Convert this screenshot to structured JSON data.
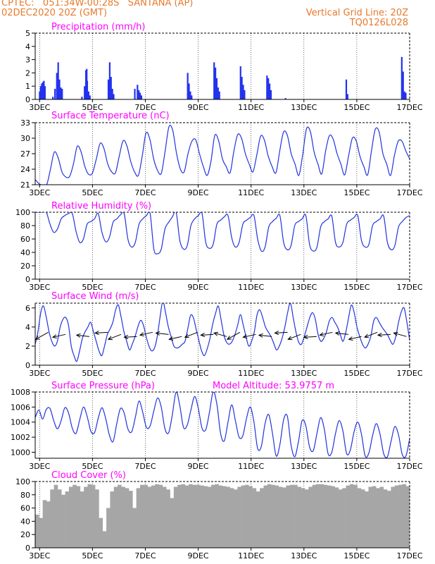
{
  "header": {
    "line1_left": "CPTEC:   051:34W-00:28S   SANTANA (AP)",
    "line2_left": "02DEC2020 20Z (GMT)",
    "line2_right": "Vertical Grid Line: 20Z",
    "line3_right": "TQ0126L028"
  },
  "colors": {
    "header": "#e8792b",
    "title": "#ff00ff",
    "line": "#2233dd",
    "bar": "#2233ee",
    "cloud": "#a6a6a6"
  },
  "x_axis": {
    "tick_labels": [
      "3DEC",
      "5DEC",
      "7DEC",
      "9DEC",
      "11DEC",
      "13DEC",
      "15DEC",
      "17DEC"
    ],
    "tick_days": [
      3,
      5,
      7,
      9,
      11,
      13,
      15,
      17
    ],
    "start_day": 2.833,
    "end_day": 17.0
  },
  "chart_data": [
    {
      "type": "bar",
      "title": "Precipitation (mm/h)",
      "ylim": [
        0,
        5
      ],
      "yticks": [
        0,
        1,
        2,
        3,
        4,
        5
      ],
      "series": [
        {
          "x": [
            3.0,
            3.04,
            3.08,
            3.12,
            3.16,
            3.2,
            3.5,
            3.58,
            3.65,
            3.7,
            3.75,
            3.8,
            3.85,
            4.6,
            4.7,
            4.75,
            4.78,
            4.8,
            4.85,
            4.9,
            5.6,
            5.65,
            5.7,
            5.75,
            5.8,
            6.6,
            6.7,
            6.75,
            6.8,
            6.85,
            8.6,
            8.65,
            8.7,
            8.75,
            9.6,
            9.65,
            9.7,
            9.75,
            9.8,
            10.6,
            10.65,
            10.7,
            10.75,
            11.6,
            11.65,
            11.7,
            11.75,
            12.3,
            14.6,
            14.65,
            16.7,
            16.75,
            16.8,
            16.85
          ],
          "values": [
            0.6,
            1.0,
            1.2,
            1.3,
            1.4,
            1.0,
            0.2,
            0.8,
            2.0,
            2.8,
            1.5,
            0.9,
            0.8,
            0.2,
            1.0,
            2.2,
            2.3,
            1.4,
            0.6,
            0.3,
            1.5,
            2.8,
            1.7,
            0.8,
            0.4,
            0.8,
            1.1,
            0.7,
            0.5,
            0.3,
            2.0,
            1.2,
            0.6,
            0.3,
            2.8,
            2.4,
            1.6,
            0.9,
            0.6,
            2.5,
            1.7,
            1.1,
            0.7,
            1.8,
            1.6,
            1.2,
            0.7,
            0.1,
            1.5,
            0.4,
            3.2,
            2.1,
            0.6,
            0.5
          ]
        }
      ]
    },
    {
      "type": "line",
      "title": "Surface Temperature (nC)",
      "ylim": [
        21,
        33
      ],
      "yticks": [
        21,
        24,
        27,
        30,
        33
      ],
      "series": [
        {
          "values": [
            22,
            21.2,
            20.9,
            21,
            24,
            27.3,
            26.2,
            23.5,
            22.5,
            22.6,
            25,
            28.4,
            27.4,
            24.5,
            23,
            23.3,
            26,
            29,
            28,
            25,
            23.5,
            23.3,
            26.5,
            29.5,
            28.5,
            25.5,
            23.5,
            22.8,
            26.5,
            31,
            29.8,
            26,
            23.8,
            23.2,
            27.5,
            32.2,
            31.5,
            27,
            24,
            23.5,
            27,
            29.4,
            29.7,
            27,
            24.5,
            22.8,
            25.5,
            30.5,
            29.5,
            26,
            24.5,
            23.3,
            27.5,
            30.7,
            30,
            27,
            25,
            23.5,
            26.8,
            30.4,
            29.6,
            26.5,
            24.5,
            23.3,
            27.5,
            31.2,
            30.5,
            27,
            25,
            22.8,
            26.8,
            31.8,
            31.3,
            27.3,
            25,
            23.1,
            27.5,
            30.5,
            29.8,
            27,
            25,
            22.9,
            26.5,
            30,
            29.5,
            26.5,
            24.5,
            22.9,
            27.5,
            31.7,
            31.2,
            27,
            25,
            22.8,
            26.6,
            29.4,
            29.4,
            27.5,
            26
          ]
        }
      ]
    },
    {
      "type": "line",
      "title": "Relative Humidity (%)",
      "ylim": [
        0,
        100
      ],
      "yticks": [
        0,
        20,
        40,
        60,
        80,
        100
      ],
      "series": [
        {
          "values": [
            100,
            100,
            100,
            100,
            82,
            70,
            75,
            90,
            95,
            98,
            98,
            72,
            55,
            60,
            82,
            86,
            90,
            98,
            70,
            56,
            62,
            85,
            90,
            96,
            98,
            60,
            48,
            55,
            82,
            90,
            95,
            98,
            45,
            38,
            45,
            75,
            85,
            93,
            100,
            58,
            45,
            50,
            80,
            90,
            95,
            98,
            55,
            46,
            52,
            82,
            88,
            93,
            95,
            62,
            48,
            55,
            82,
            88,
            92,
            95,
            60,
            42,
            48,
            78,
            86,
            91,
            95,
            55,
            44,
            50,
            80,
            86,
            90,
            95,
            52,
            42,
            48,
            78,
            86,
            90,
            94,
            55,
            48,
            55,
            82,
            88,
            92,
            95,
            58,
            48,
            52,
            80,
            86,
            90,
            94,
            55,
            44,
            50,
            78,
            86,
            92,
            95
          ]
        }
      ]
    },
    {
      "type": "line",
      "title": "Surface Wind (m/s)",
      "ylim": [
        0,
        6.5
      ],
      "yticks": [
        0,
        2,
        4,
        6
      ],
      "series": [
        {
          "values": [
            2.2,
            3.5,
            5.5,
            6.2,
            5,
            3.5,
            2.5,
            2,
            2.5,
            4,
            4.8,
            5,
            4.2,
            2,
            1,
            0.4,
            1.5,
            2.8,
            3.5,
            4,
            4.5,
            3.5,
            2.5,
            1.5,
            1,
            2,
            3.2,
            3.8,
            4.5,
            5.8,
            6.3,
            5,
            3.5,
            2.5,
            1.6,
            2.2,
            3,
            4,
            4.7,
            4.2,
            3,
            2,
            1.5,
            1.8,
            3,
            5,
            6.7,
            5.5,
            4,
            3,
            2,
            1.8,
            1.9,
            2.2,
            2.5,
            3.8,
            5.2,
            5,
            3.8,
            2.6,
            1.5,
            1,
            1.7,
            2.8,
            4.3,
            5.4,
            6.2,
            4.8,
            3.2,
            2.4,
            2.2,
            2.5,
            3.2,
            4.2,
            5.3,
            4.2,
            3,
            2,
            2.5,
            3.5,
            5.3,
            5.8,
            5,
            4,
            3.5,
            3,
            2.3,
            1.6,
            2,
            2.8,
            4,
            5.5,
            6.5,
            5,
            3.5,
            2.4,
            2.2,
            3,
            4,
            5,
            5.5,
            4.8,
            3.2,
            2.5,
            2.8,
            3.5,
            4.6,
            5,
            4.5,
            4,
            3.2,
            2.5,
            3.5,
            5,
            6.3,
            5.5,
            4,
            3,
            2.2,
            1.8,
            2.2,
            3,
            4.6,
            5,
            4.5,
            4,
            3.6,
            3.2,
            2.6,
            2.2,
            3,
            4.5,
            5.6,
            6,
            4.5,
            2.6
          ]
        }
      ],
      "arrows": [
        2.85,
        3.5,
        4.4,
        5.1,
        5.6,
        6.2,
        6.8,
        7.4,
        7.9,
        8.5,
        9.1,
        9.6,
        10.1,
        10.7,
        11.3,
        11.9,
        12.4,
        13.0,
        13.6,
        14.2,
        14.7,
        15.3,
        15.8,
        16.4
      ]
    },
    {
      "type": "line",
      "title": "Surface Pressure (hPa)",
      "annotation": "Model Altitude: 53.9757 m",
      "ylim": [
        999.2,
        1008
      ],
      "yticks": [
        1000,
        1002,
        1004,
        1006,
        1008
      ],
      "series": [
        {
          "values": [
            1004.6,
            1005.6,
            1004.4,
            1005.7,
            1005.8,
            1004.2,
            1003.1,
            1004.2,
            1005.9,
            1005.2,
            1003.2,
            1002.5,
            1004.3,
            1006.0,
            1004.8,
            1002.8,
            1002.6,
            1004.5,
            1005.9,
            1004.5,
            1002.3,
            1001.4,
            1003.8,
            1005.8,
            1005.2,
            1003.1,
            1002.7,
            1004.6,
            1006.8,
            1005.3,
            1003.3,
            1003.5,
            1005.5,
            1007.2,
            1006.0,
            1003.1,
            1002.6,
            1005.0,
            1008.0,
            1006.2,
            1003.3,
            1003.6,
            1005.6,
            1007.4,
            1005.8,
            1003.2,
            1003.0,
            1005.3,
            1008.0,
            1006.4,
            1002.5,
            1001.5,
            1004.0,
            1006.3,
            1004.2,
            1002.0,
            1002.2,
            1004.5,
            1006.0,
            1004.0,
            1000.5,
            1000.8,
            1003.8,
            1005.0,
            1002.5,
            999.5,
            1001.0,
            1004.3,
            1004.8,
            1001.0,
            999.4,
            1001.4,
            1004.2,
            1003.5,
            1000.7,
            1000.2,
            1002.5,
            1004.6,
            1003.0,
            999.8,
            1000.0,
            1002.5,
            1004.2,
            1002.8,
            999.8,
            1000.3,
            1002.7,
            1004.0,
            1002.4,
            999.5,
            999.9,
            1002.2,
            1003.8,
            1002.4,
            999.8,
            999.4,
            1001.5,
            1003.4,
            1002.3,
            999.7,
            999.5,
            1001.8
          ]
        }
      ]
    },
    {
      "type": "bar",
      "title": "Cloud Cover (%)",
      "ylim": [
        0,
        100
      ],
      "yticks": [
        0,
        20,
        40,
        60,
        80,
        100
      ],
      "series": [
        {
          "values": [
            50,
            45,
            72,
            70,
            88,
            95,
            88,
            80,
            85,
            92,
            95,
            93,
            85,
            92,
            96,
            95,
            88,
            45,
            25,
            60,
            85,
            92,
            95,
            92,
            90,
            86,
            60,
            90,
            95,
            95,
            92,
            94,
            96,
            95,
            92,
            88,
            75,
            92,
            95,
            96,
            94,
            96,
            95,
            95,
            94,
            93,
            92,
            95,
            96,
            94,
            93,
            92,
            90,
            88,
            92,
            94,
            95,
            93,
            90,
            85,
            90,
            94,
            96,
            95,
            94,
            92,
            91,
            94,
            95,
            95,
            92,
            90,
            88,
            92,
            95,
            96,
            96,
            95,
            94,
            93,
            91,
            88,
            90,
            94,
            96,
            95,
            90,
            88,
            85,
            92,
            93,
            90,
            92,
            88,
            86,
            92,
            94,
            95,
            96,
            93
          ]
        }
      ]
    }
  ]
}
